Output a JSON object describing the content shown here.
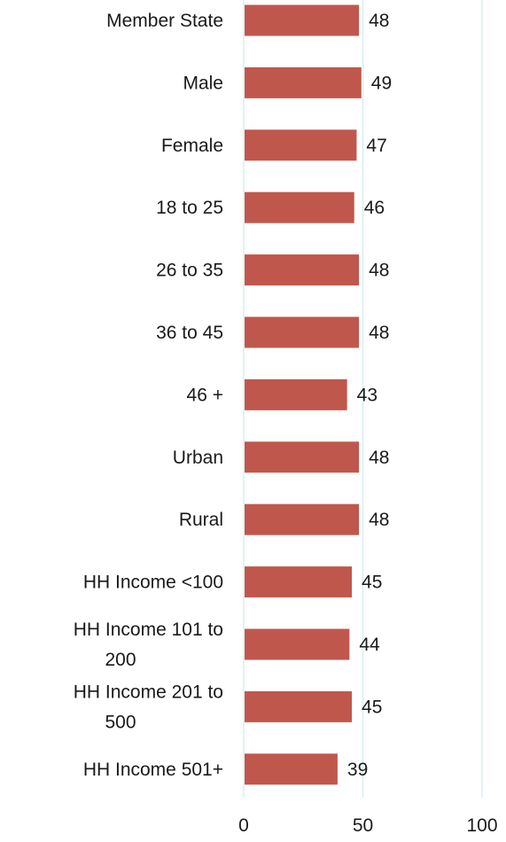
{
  "chart_data": {
    "type": "bar",
    "orientation": "horizontal",
    "categories": [
      "Member State",
      "Male",
      "Female",
      "18 to 25",
      "26 to 35",
      "36 to 45",
      "46 +",
      "Urban",
      "Rural",
      "HH Income <100",
      "HH Income 101 to 200",
      "HH Income 201 to 500",
      "HH Income 501+"
    ],
    "category_lines": [
      [
        "Member State"
      ],
      [
        "Male"
      ],
      [
        "Female"
      ],
      [
        "18 to 25"
      ],
      [
        "26 to 35"
      ],
      [
        "36 to 45"
      ],
      [
        "46 +"
      ],
      [
        "Urban"
      ],
      [
        "Rural"
      ],
      [
        "HH Income <100"
      ],
      [
        "HH Income 101 to",
        "200"
      ],
      [
        "HH Income 201 to",
        "500"
      ],
      [
        "HH Income 501+"
      ]
    ],
    "values": [
      48,
      49,
      47,
      46,
      48,
      48,
      43,
      48,
      48,
      45,
      44,
      45,
      39
    ],
    "data_labels": [
      "48",
      "49",
      "47",
      "46",
      "48",
      "48",
      "43",
      "48",
      "48",
      "45",
      "44",
      "45",
      "39"
    ],
    "xlim": [
      0,
      100
    ],
    "x_ticks": [
      0,
      50,
      100
    ],
    "x_tick_labels": [
      "0",
      "50",
      "100"
    ],
    "grid": "vertical",
    "legend": "none",
    "colors": {
      "bar": "#c0574c",
      "gridline": "#d6eff2",
      "text": "#1a1a1a"
    }
  }
}
